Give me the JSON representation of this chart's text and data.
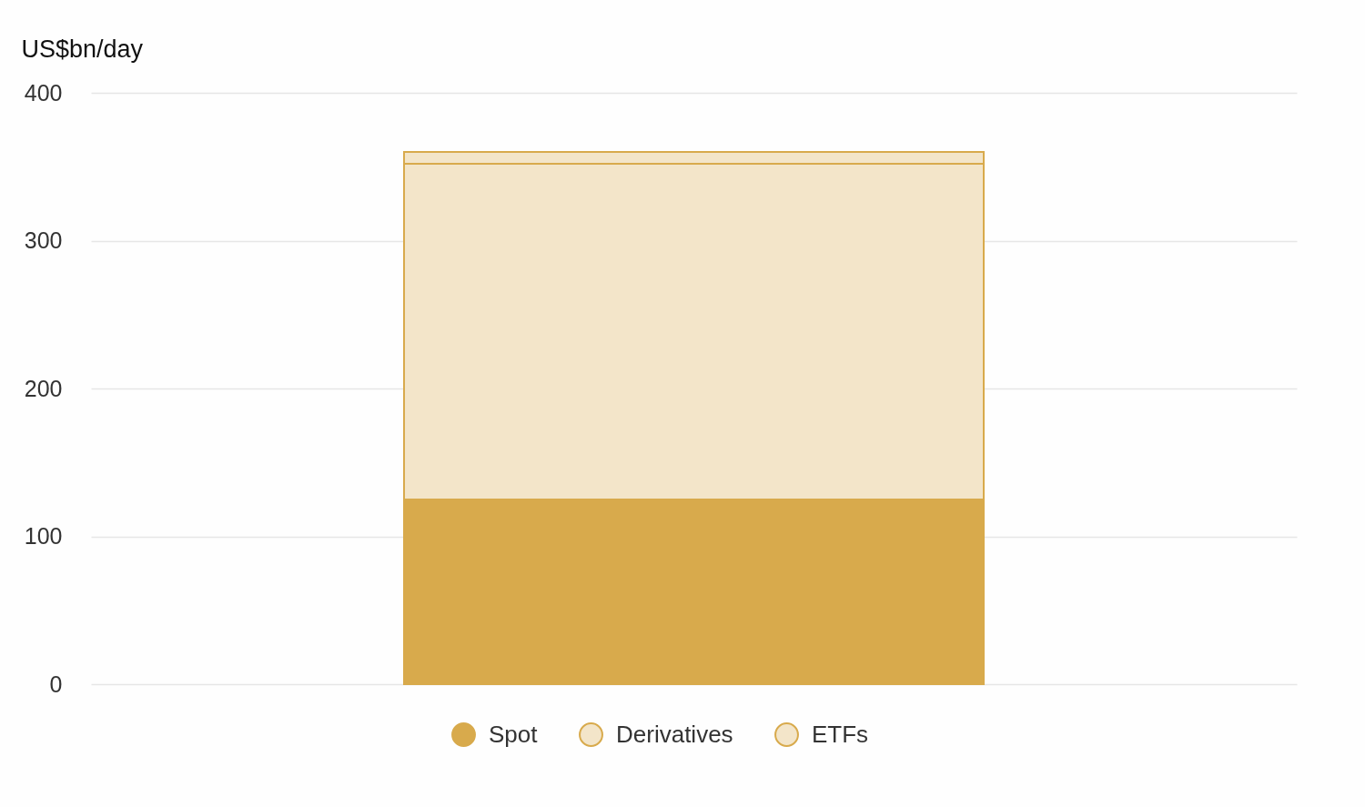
{
  "chart_data": {
    "type": "bar",
    "ylabel": "US$bn/day",
    "categories": [
      null
    ],
    "series": [
      {
        "name": "Spot",
        "color": "#d8aa4c",
        "values": [
          125
        ]
      },
      {
        "name": "Derivatives",
        "color": "#d8aa4c",
        "values": [
          227
        ]
      },
      {
        "name": "ETFs",
        "color": "#d8aa4c",
        "values": [
          8
        ]
      }
    ],
    "stacked": true,
    "ylim": [
      0,
      400
    ],
    "yticks": [
      0,
      100,
      200,
      300,
      400
    ],
    "grid": "y",
    "legend": "bottom",
    "tick_labels": "y"
  }
}
